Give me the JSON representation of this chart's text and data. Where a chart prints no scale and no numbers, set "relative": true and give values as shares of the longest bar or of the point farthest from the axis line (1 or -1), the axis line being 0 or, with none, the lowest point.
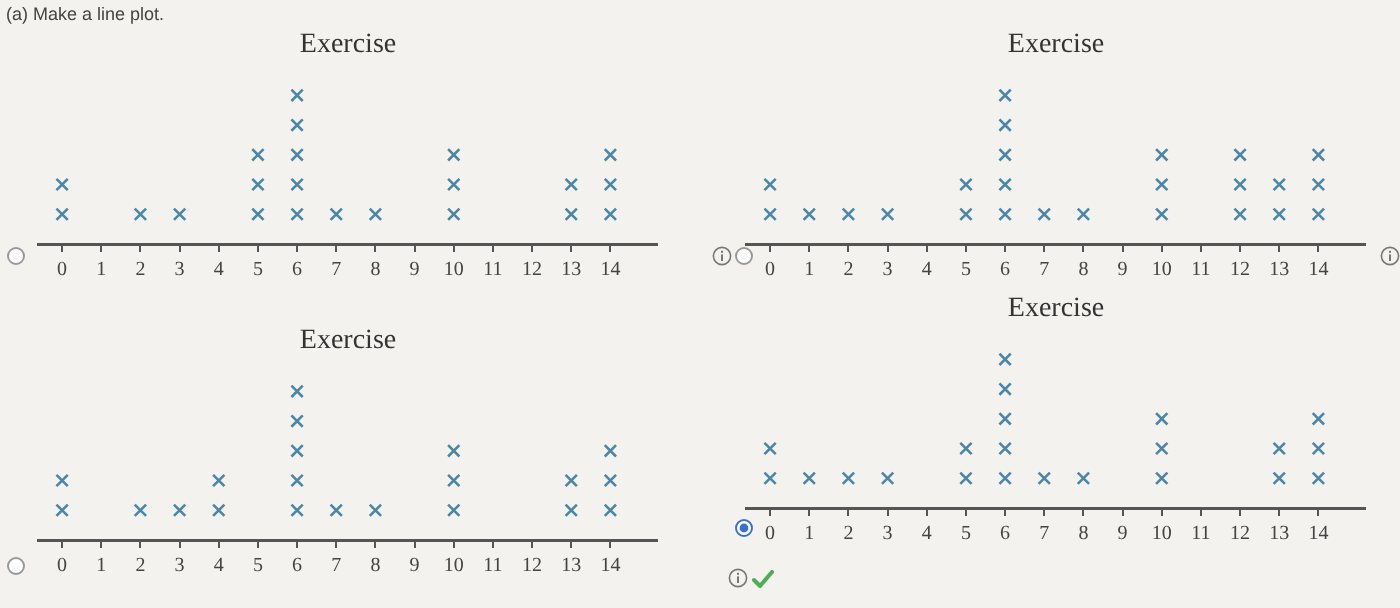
{
  "chart_data": [
    {
      "type": "scatter",
      "title": "Exercise",
      "annotations": [
        "(a) Make a line plot."
      ],
      "relative": true,
      "color": "#4a86a8",
      "marker": "cross",
      "tick_labels": "x",
      "xlim": [
        -0.6,
        15.2
      ],
      "xticks": [
        0,
        1,
        2,
        3,
        4,
        5,
        6,
        7,
        8,
        9,
        10,
        11,
        12,
        13,
        14
      ],
      "x": [
        0,
        0,
        2,
        3,
        5,
        5,
        5,
        6,
        6,
        6,
        6,
        6,
        7,
        8,
        10,
        10,
        10,
        13,
        13,
        14,
        14,
        14
      ],
      "values": [
        0.2,
        0.4,
        0.2,
        0.2,
        0.2,
        0.4,
        0.6,
        0.2,
        0.4,
        0.6,
        0.8,
        1,
        0.2,
        0.2,
        0.2,
        0.4,
        0.6,
        0.2,
        0.4,
        0.2,
        0.4,
        0.6
      ]
    },
    {
      "type": "scatter",
      "title": "Exercise",
      "relative": true,
      "color": "#4a86a8",
      "marker": "cross",
      "tick_labels": "x",
      "xlim": [
        -0.6,
        15.2
      ],
      "xticks": [
        0,
        1,
        2,
        3,
        4,
        5,
        6,
        7,
        8,
        9,
        10,
        11,
        12,
        13,
        14
      ],
      "x": [
        0,
        0,
        1,
        2,
        3,
        5,
        5,
        6,
        6,
        6,
        6,
        6,
        7,
        8,
        10,
        10,
        10,
        12,
        12,
        12,
        13,
        13,
        14,
        14,
        14
      ],
      "values": [
        0.2,
        0.4,
        0.2,
        0.2,
        0.2,
        0.2,
        0.4,
        0.2,
        0.4,
        0.6,
        0.8,
        1,
        0.2,
        0.2,
        0.2,
        0.4,
        0.6,
        0.2,
        0.4,
        0.6,
        0.2,
        0.4,
        0.2,
        0.4,
        0.6
      ]
    },
    {
      "type": "scatter",
      "title": "Exercise",
      "relative": true,
      "color": "#4a86a8",
      "marker": "cross",
      "tick_labels": "x",
      "xlim": [
        -0.6,
        15.2
      ],
      "xticks": [
        0,
        1,
        2,
        3,
        4,
        5,
        6,
        7,
        8,
        9,
        10,
        11,
        12,
        13,
        14
      ],
      "x": [
        0,
        0,
        2,
        3,
        4,
        4,
        6,
        6,
        6,
        6,
        6,
        7,
        8,
        10,
        10,
        10,
        13,
        13,
        14,
        14,
        14
      ],
      "values": [
        0.2,
        0.4,
        0.2,
        0.2,
        0.2,
        0.4,
        0.2,
        0.4,
        0.6,
        0.8,
        1,
        0.2,
        0.2,
        0.2,
        0.4,
        0.6,
        0.2,
        0.4,
        0.2,
        0.4,
        0.6
      ]
    },
    {
      "type": "scatter",
      "title": "Exercise",
      "relative": true,
      "color": "#4a86a8",
      "marker": "cross",
      "tick_labels": "x",
      "xlim": [
        -0.6,
        15.2
      ],
      "xticks": [
        0,
        1,
        2,
        3,
        4,
        5,
        6,
        7,
        8,
        9,
        10,
        11,
        12,
        13,
        14
      ],
      "x": [
        0,
        0,
        1,
        2,
        3,
        5,
        5,
        6,
        6,
        6,
        6,
        6,
        7,
        8,
        10,
        10,
        10,
        13,
        13,
        14,
        14,
        14
      ],
      "values": [
        0.2,
        0.4,
        0.2,
        0.2,
        0.2,
        0.2,
        0.4,
        0.2,
        0.4,
        0.6,
        0.8,
        1,
        0.2,
        0.2,
        0.2,
        0.4,
        0.6,
        0.2,
        0.4,
        0.2,
        0.4,
        0.6
      ]
    }
  ]
}
